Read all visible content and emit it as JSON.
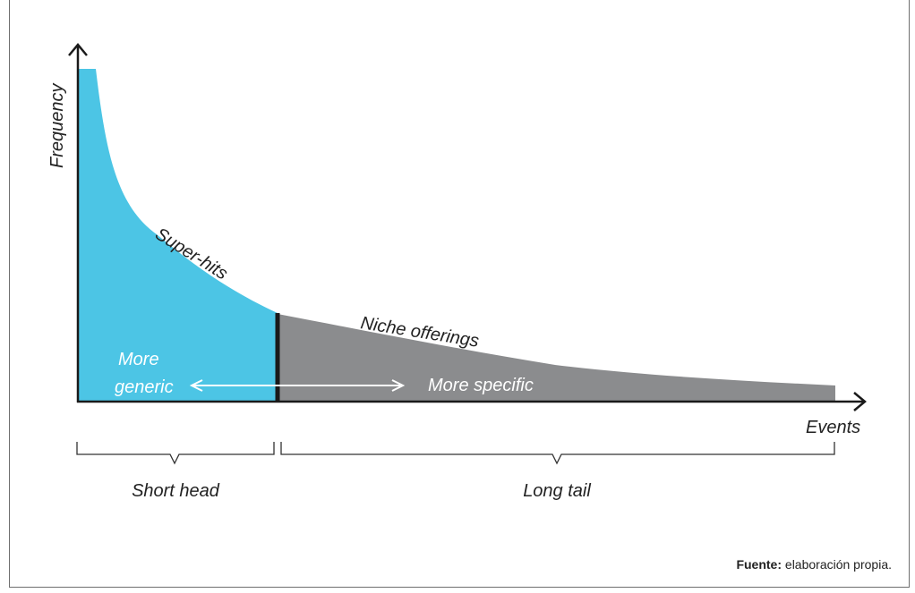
{
  "axes": {
    "y_label": "Frequency",
    "x_label": "Events"
  },
  "curve_labels": {
    "head": "Super-hits",
    "tail": "Niche offerings"
  },
  "region_labels": {
    "left_line1": "More",
    "left_line2": "generic",
    "right": "More specific"
  },
  "brackets": {
    "head": "Short head",
    "tail": "Long tail"
  },
  "source": {
    "prefix": "Fuente:",
    "text": "elaboración propia."
  },
  "colors": {
    "head": "#4cc5e5",
    "tail": "#8b8c8e",
    "axis": "#1a1a1a",
    "divider": "#1a1a1a"
  }
}
